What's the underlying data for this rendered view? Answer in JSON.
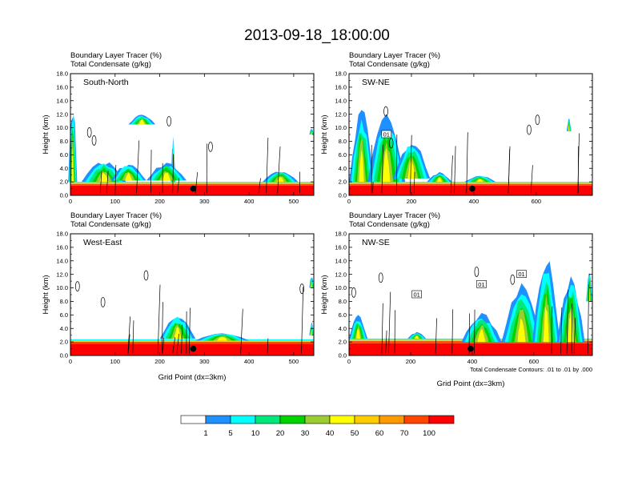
{
  "title": "2013-09-18_18:00:00",
  "field_title_1": "Boundary Layer Tracer   (%)",
  "field_title_2": "Total Condensate   (g/kg)",
  "ylabel": "Height (km)",
  "xlabel": "Grid Point (dx=3km)",
  "contour_note": "Total Condensate Contours: .01 to .01 by .000",
  "colorbar": {
    "labels": [
      "1",
      "5",
      "10",
      "20",
      "30",
      "40",
      "50",
      "60",
      "70",
      "100"
    ],
    "colors": [
      "#ffffff",
      "#1e90ff",
      "#00ffff",
      "#00e87a",
      "#00d400",
      "#9acd32",
      "#ffff00",
      "#ffcc00",
      "#ff9900",
      "#ff4500",
      "#ff0000"
    ]
  },
  "chart_data": [
    {
      "type": "heatmap",
      "panel": "South-North",
      "title": "Boundary Layer Tracer (%) / Total Condensate (g/kg)",
      "xlabel": "",
      "ylabel": "Height (km)",
      "xlim": [
        0,
        545
      ],
      "ylim": [
        0,
        18
      ],
      "xticks": [
        0,
        100,
        200,
        300,
        400,
        500
      ],
      "yticks": [
        0.0,
        2.0,
        4.0,
        6.0,
        8.0,
        10.0,
        12.0,
        14.0,
        16.0,
        18.0
      ],
      "marker_x": 275,
      "marker_y": 1.0,
      "boundary_layer_top_km": 2.0,
      "plumes": [
        {
          "x_center": 5,
          "x_width": 20,
          "top_km": 14.5,
          "base_km": 2.0
        },
        {
          "x_center": 75,
          "x_width": 100,
          "top_km": 5.2,
          "base_km": 2.0
        },
        {
          "x_center": 130,
          "x_width": 80,
          "top_km": 4.8,
          "base_km": 2.2
        },
        {
          "x_center": 160,
          "x_width": 60,
          "top_km": 12.0,
          "base_km": 10.5
        },
        {
          "x_center": 230,
          "x_width": 10,
          "top_km": 8.8,
          "base_km": 2.0
        },
        {
          "x_center": 215,
          "x_width": 90,
          "top_km": 5.0,
          "base_km": 2.2
        },
        {
          "x_center": 470,
          "x_width": 80,
          "top_km": 3.8,
          "base_km": 2.0
        },
        {
          "x_center": 540,
          "x_width": 10,
          "top_km": 10.0,
          "base_km": 9.0
        }
      ]
    },
    {
      "type": "heatmap",
      "panel": "SW-NE",
      "title": "Boundary Layer Tracer (%) / Total Condensate (g/kg)",
      "xlabel": "",
      "ylabel": "Height (km)",
      "xlim": [
        0,
        780
      ],
      "ylim": [
        0,
        18
      ],
      "xticks": [
        0,
        200,
        400,
        600
      ],
      "yticks": [
        0.0,
        2.0,
        4.0,
        6.0,
        8.0,
        10.0,
        12.0,
        14.0,
        16.0,
        18.0
      ],
      "marker_x": 395,
      "marker_y": 1.0,
      "boundary_layer_top_km": 2.0,
      "contour_labels": [
        "01"
      ],
      "plumes": [
        {
          "x_center": 40,
          "x_width": 80,
          "top_km": 13.5,
          "base_km": 2.0
        },
        {
          "x_center": 120,
          "x_width": 120,
          "top_km": 13.0,
          "base_km": 2.0
        },
        {
          "x_center": 200,
          "x_width": 120,
          "top_km": 8.5,
          "base_km": 2.5
        },
        {
          "x_center": 290,
          "x_width": 80,
          "top_km": 3.5,
          "base_km": 2.0
        },
        {
          "x_center": 420,
          "x_width": 100,
          "top_km": 3.0,
          "base_km": 2.0
        },
        {
          "x_center": 705,
          "x_width": 15,
          "top_km": 11.5,
          "base_km": 9.5
        }
      ]
    },
    {
      "type": "heatmap",
      "panel": "West-East",
      "title": "Boundary Layer Tracer (%) / Total Condensate (g/kg)",
      "xlabel": "Grid Point (dx=3km)",
      "ylabel": "Height (km)",
      "xlim": [
        0,
        545
      ],
      "ylim": [
        0,
        18
      ],
      "xticks": [
        0,
        100,
        200,
        300,
        400,
        500
      ],
      "yticks": [
        0.0,
        2.0,
        4.0,
        6.0,
        8.0,
        10.0,
        12.0,
        14.0,
        16.0,
        18.0
      ],
      "marker_x": 275,
      "marker_y": 1.0,
      "boundary_layer_top_km": 2.4,
      "plumes": [
        {
          "x_center": 240,
          "x_width": 80,
          "top_km": 6.2,
          "base_km": 2.5
        },
        {
          "x_center": 340,
          "x_width": 120,
          "top_km": 3.5,
          "base_km": 2.2
        },
        {
          "x_center": 540,
          "x_width": 10,
          "top_km": 12.0,
          "base_km": 10.0
        },
        {
          "x_center": 540,
          "x_width": 10,
          "top_km": 5.0,
          "base_km": 3.0
        }
      ]
    },
    {
      "type": "heatmap",
      "panel": "NW-SE",
      "title": "Boundary Layer Tracer (%) / Total Condensate (g/kg)",
      "xlabel": "Grid Point (dx=3km)",
      "ylabel": "Height (km)",
      "xlim": [
        0,
        790
      ],
      "ylim": [
        0,
        18
      ],
      "xticks": [
        0,
        200,
        400,
        600
      ],
      "yticks": [
        0.0,
        2.0,
        4.0,
        6.0,
        8.0,
        10.0,
        12.0,
        14.0,
        16.0,
        18.0
      ],
      "marker_x": 395,
      "marker_y": 1.0,
      "boundary_layer_top_km": 2.5,
      "contour_labels": [
        "01",
        "01",
        "01"
      ],
      "plumes": [
        {
          "x_center": 30,
          "x_width": 60,
          "top_km": 6.0,
          "base_km": 2.5
        },
        {
          "x_center": 220,
          "x_width": 60,
          "top_km": 3.5,
          "base_km": 2.5
        },
        {
          "x_center": 430,
          "x_width": 130,
          "top_km": 6.5,
          "base_km": 2.0
        },
        {
          "x_center": 560,
          "x_width": 130,
          "top_km": 11.0,
          "base_km": 2.0
        },
        {
          "x_center": 640,
          "x_width": 90,
          "top_km": 15.0,
          "base_km": 2.0
        },
        {
          "x_center": 720,
          "x_width": 90,
          "top_km": 12.5,
          "base_km": 2.0
        },
        {
          "x_center": 780,
          "x_width": 20,
          "top_km": 13.0,
          "base_km": 8.0
        }
      ]
    }
  ]
}
